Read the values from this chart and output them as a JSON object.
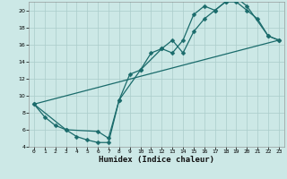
{
  "title": "",
  "xlabel": "Humidex (Indice chaleur)",
  "xlim": [
    -0.5,
    23.5
  ],
  "ylim": [
    4,
    21
  ],
  "xticks": [
    0,
    1,
    2,
    3,
    4,
    5,
    6,
    7,
    8,
    9,
    10,
    11,
    12,
    13,
    14,
    15,
    16,
    17,
    18,
    19,
    20,
    21,
    22,
    23
  ],
  "yticks": [
    4,
    6,
    8,
    10,
    12,
    14,
    16,
    18,
    20
  ],
  "bg_color": "#cce8e6",
  "grid_color": "#aaccca",
  "line_color": "#1a6b6b",
  "line1_x": [
    0,
    1,
    2,
    3,
    4,
    5,
    6,
    7,
    8,
    9,
    10,
    11,
    12,
    13,
    14,
    15,
    16,
    17,
    18,
    19,
    20,
    21,
    22,
    23
  ],
  "line1_y": [
    9.0,
    7.5,
    6.5,
    6.0,
    5.2,
    4.8,
    4.5,
    4.5,
    9.5,
    12.5,
    13.0,
    15.0,
    15.5,
    16.5,
    15.0,
    17.5,
    19.0,
    20.0,
    21.0,
    21.0,
    20.0,
    19.0,
    17.0,
    16.5
  ],
  "line2_x": [
    0,
    3,
    6,
    7,
    8,
    10,
    12,
    13,
    14,
    15,
    16,
    17,
    18,
    19,
    20,
    22,
    23
  ],
  "line2_y": [
    9.0,
    6.0,
    5.8,
    5.0,
    9.5,
    13.0,
    15.5,
    15.0,
    16.5,
    19.5,
    20.5,
    20.0,
    21.0,
    21.5,
    20.5,
    17.0,
    16.5
  ],
  "line3_x": [
    0,
    23
  ],
  "line3_y": [
    9.0,
    16.5
  ],
  "marker": "D",
  "markersize": 2.5,
  "linewidth": 0.9,
  "tick_fontsize": 4.5,
  "xlabel_fontsize": 6.5
}
